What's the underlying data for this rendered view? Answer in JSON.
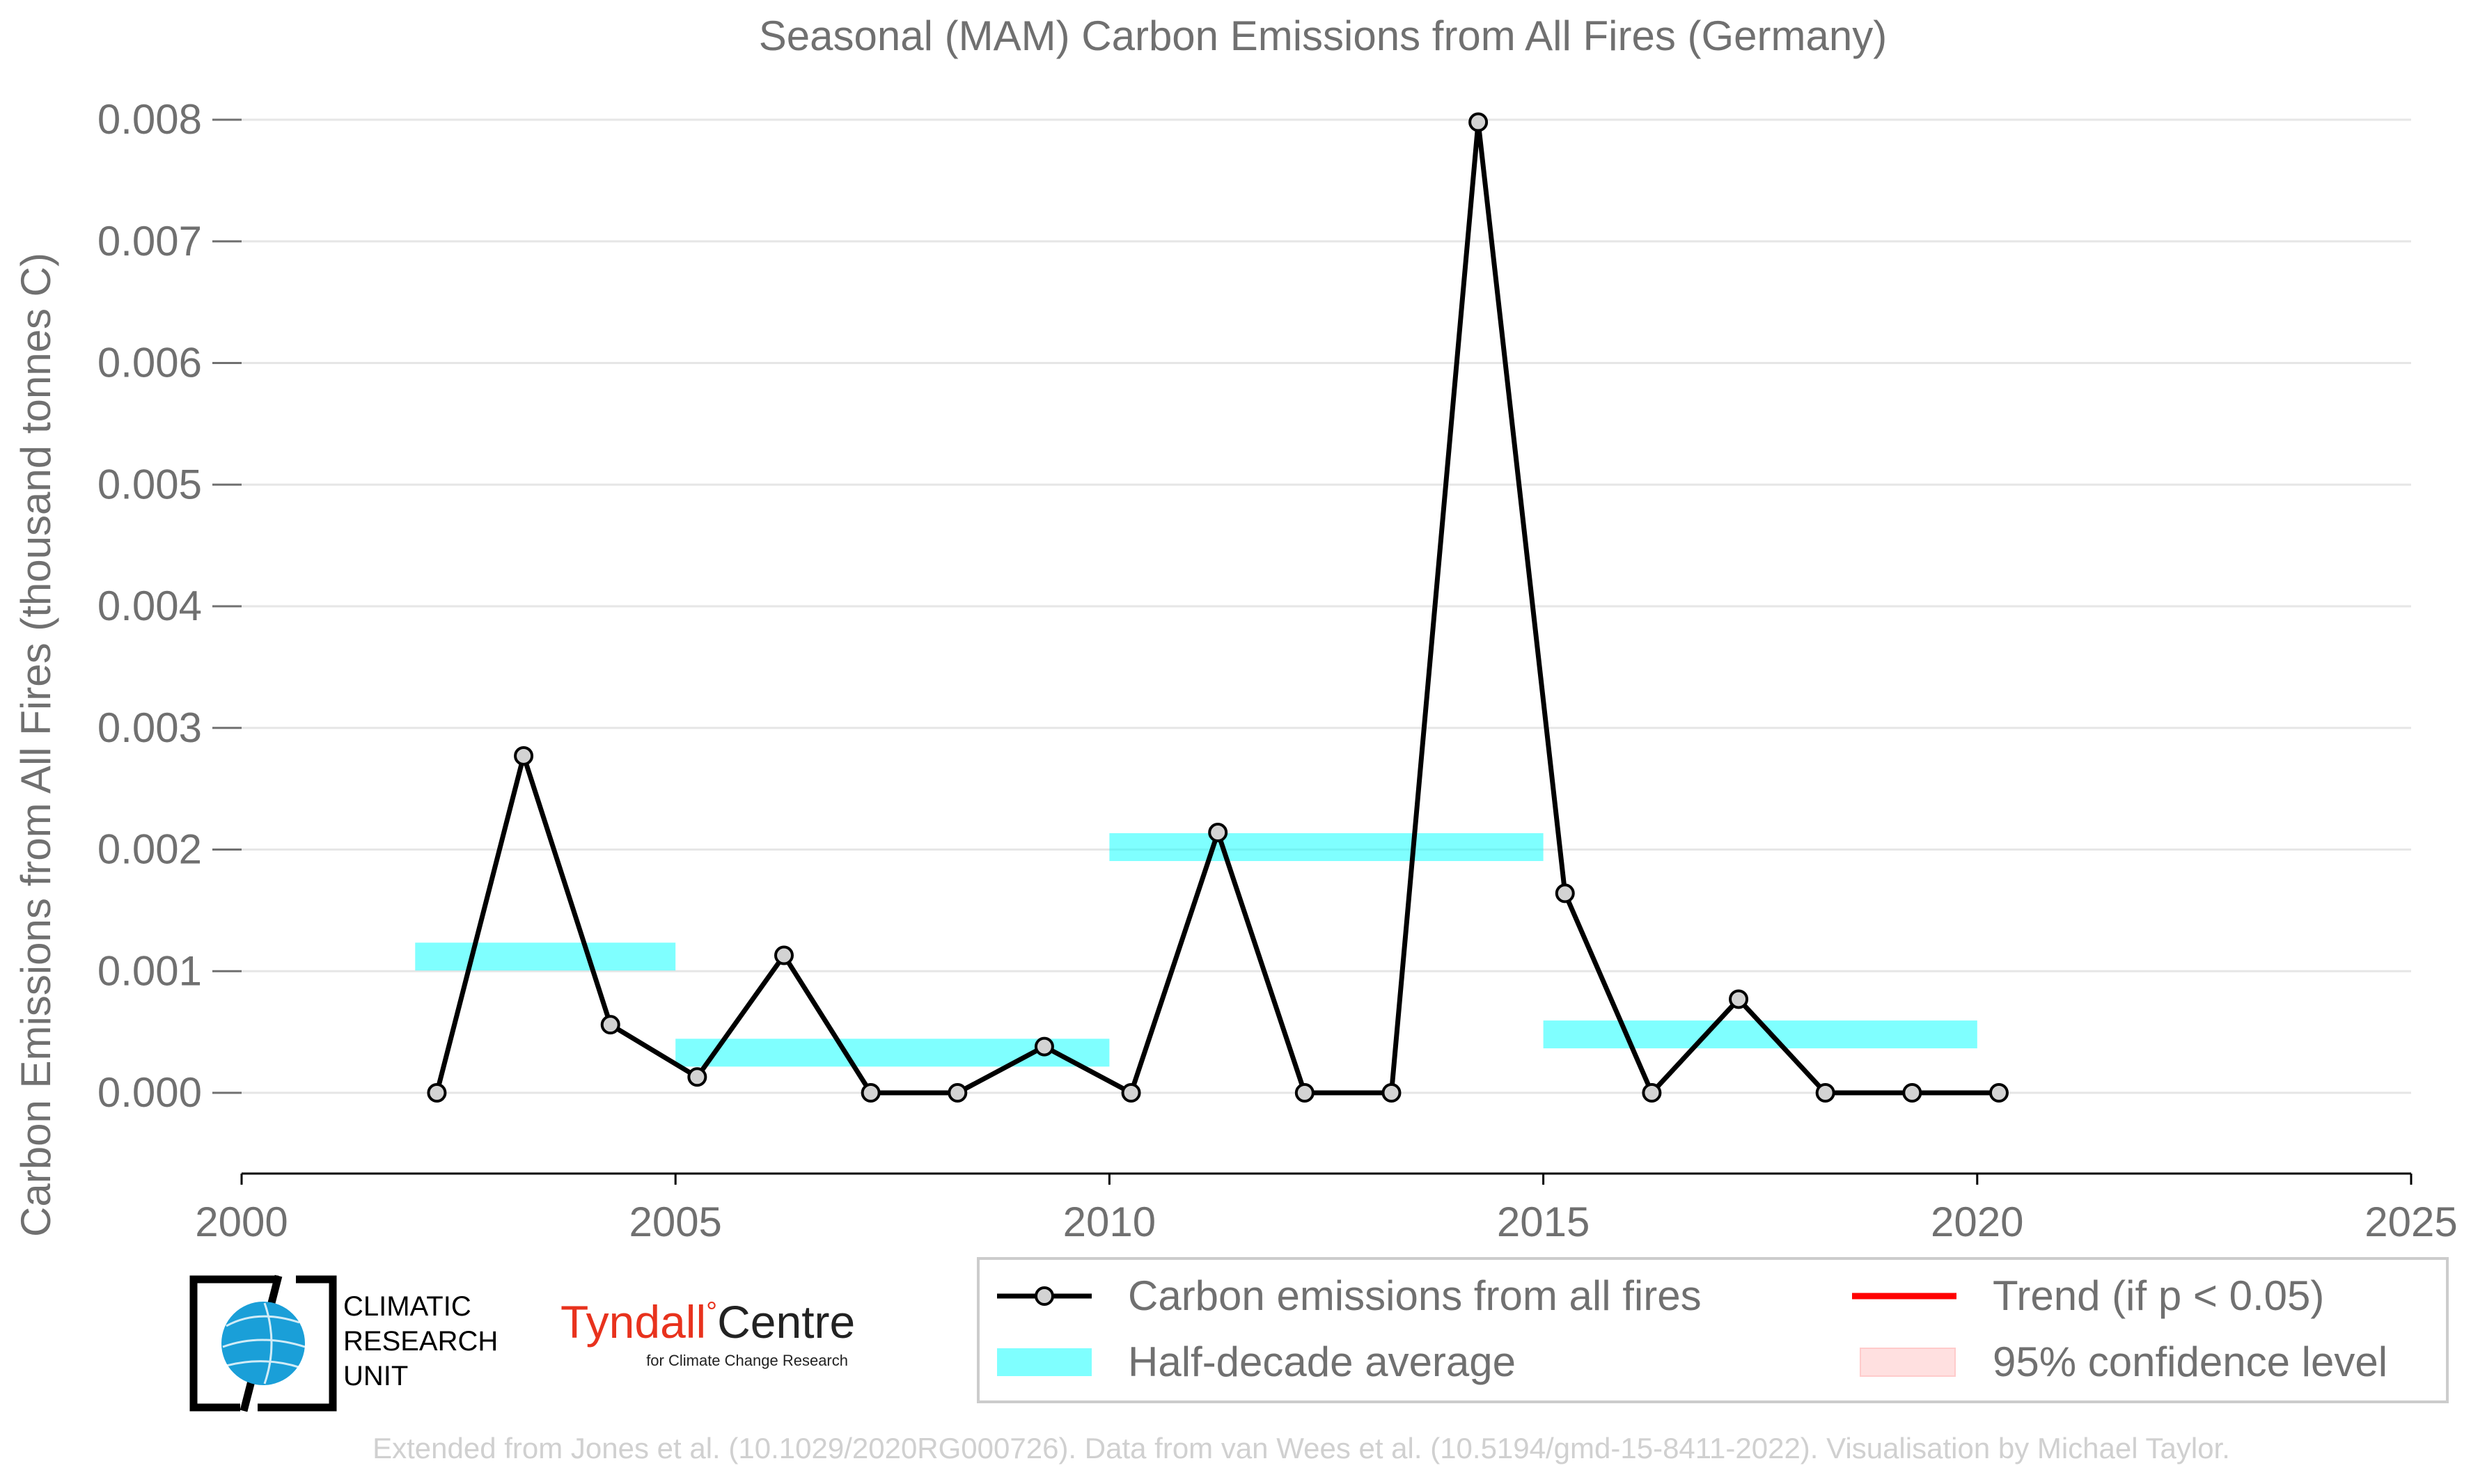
{
  "chart_data": {
    "type": "line",
    "title": "Seasonal (MAM) Carbon Emissions from All Fires (Germany)",
    "xlabel": "",
    "ylabel": "Carbon Emissions from All Fires (thousand tonnes C)",
    "xlim": [
      2000,
      2025
    ],
    "ylim": [
      -0.00065,
      0.008
    ],
    "xticks": [
      2000,
      2005,
      2010,
      2015,
      2020,
      2025
    ],
    "xtick_labels": [
      "2000",
      "2005",
      "2010",
      "2015",
      "2020",
      "2025"
    ],
    "yticks": [
      0,
      0.001,
      0.002,
      0.003,
      0.004,
      0.005,
      0.006,
      0.007,
      0.008
    ],
    "ytick_labels": [
      "0.000",
      "0.001",
      "0.002",
      "0.003",
      "0.004",
      "0.005",
      "0.006",
      "0.007",
      "0.008"
    ],
    "grid": "horizontal",
    "series": [
      {
        "name": "Carbon emissions from all fires",
        "color": "#000000",
        "marker_fill": "#d3d3d3",
        "x": [
          2002.25,
          2003.25,
          2004.25,
          2005.25,
          2006.25,
          2007.25,
          2008.25,
          2009.25,
          2010.25,
          2011.25,
          2012.25,
          2013.25,
          2014.25,
          2015.25,
          2016.25,
          2017.25,
          2018.25,
          2019.25,
          2020.25
        ],
        "y": [
          0.0,
          0.00277,
          0.00056,
          0.00013,
          0.00113,
          0.0,
          0.0,
          0.00038,
          0.0,
          0.00214,
          0.0,
          0.0,
          0.00798,
          0.00164,
          0.0,
          0.00077,
          0.0,
          0.0,
          0.0
        ]
      }
    ],
    "half_decade_average": {
      "name": "Half-decade average",
      "color": "#00ffff",
      "segments": [
        {
          "x_start": 2002,
          "x_end": 2005,
          "y": 0.00112
        },
        {
          "x_start": 2005,
          "x_end": 2010,
          "y": 0.00033
        },
        {
          "x_start": 2010,
          "x_end": 2015,
          "y": 0.00202
        },
        {
          "x_start": 2015,
          "x_end": 2020,
          "y": 0.00048
        }
      ]
    },
    "legend": {
      "placement": "bottom-right",
      "entries": [
        {
          "label": "Carbon emissions from all fires",
          "kind": "line-marker",
          "color": "#000000"
        },
        {
          "label": "Trend (if p < 0.05)",
          "kind": "line",
          "color": "#ff0000"
        },
        {
          "label": "Half-decade average",
          "kind": "patch",
          "color": "#00ffff"
        },
        {
          "label": "95% confidence level",
          "kind": "patch",
          "color": "#ffcccc"
        }
      ]
    }
  },
  "logos": {
    "cru": {
      "line1": "CLIMATIC",
      "line2": "RESEARCH",
      "line3": "UNIT",
      "color": "#1a9fd8"
    },
    "tyndall": {
      "name": "Tyndall",
      "degree": "°",
      "centre": "Centre",
      "subtitle": "for Climate Change Research",
      "color": "#e8321d"
    }
  },
  "credit": "Extended from Jones et al. (10.1029/2020RG000726). Data from van Wees et al. (10.5194/gmd-15-8411-2022). Visualisation by Michael Taylor."
}
